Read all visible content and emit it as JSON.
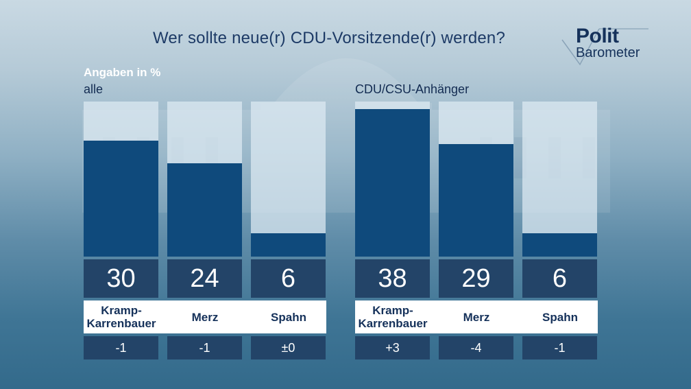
{
  "header": {
    "title": "Wer sollte neue(r) CDU-Vorsitzende(r) werden?",
    "unit_label": "Angaben in %"
  },
  "logo": {
    "line1": "Polit",
    "line2": "Barometer"
  },
  "colors": {
    "bar": "#0f4a7c",
    "value_box": "#234468",
    "title": "#1d3a66"
  },
  "chart_data": [
    {
      "type": "bar",
      "title": "alle",
      "categories": [
        "Kramp-Karrenbauer",
        "Merz",
        "Spahn"
      ],
      "category_lines": [
        [
          "Kramp-",
          "Karrenbauer"
        ],
        [
          "Merz"
        ],
        [
          "Spahn"
        ]
      ],
      "values": [
        30,
        24,
        6
      ],
      "changes": [
        "-1",
        "-1",
        "±0"
      ],
      "ylim": [
        0,
        40
      ],
      "grid": false
    },
    {
      "type": "bar",
      "title": "CDU/CSU-Anhänger",
      "categories": [
        "Kramp-Karrenbauer",
        "Merz",
        "Spahn"
      ],
      "category_lines": [
        [
          "Kramp-",
          "Karrenbauer"
        ],
        [
          "Merz"
        ],
        [
          "Spahn"
        ]
      ],
      "values": [
        38,
        29,
        6
      ],
      "changes": [
        "+3",
        "-4",
        "-1"
      ],
      "ylim": [
        0,
        40
      ],
      "grid": false
    }
  ]
}
